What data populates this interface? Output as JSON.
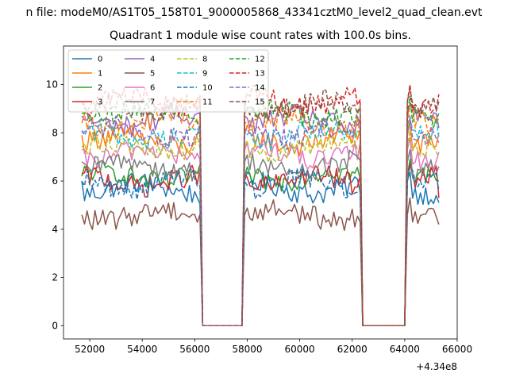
{
  "figure": {
    "suptitle": "n file: modeM0/AS1T05_158T01_9000005868_43341cztM0_level2_quad_clean.evt"
  },
  "chart_data": {
    "type": "line",
    "title": "Quadrant 1 module wise count rates with 100.0s bins.",
    "xlabel": "",
    "ylabel": "",
    "x_offset_label": "+4.34e8",
    "xlim": [
      51000,
      66000
    ],
    "ylim": [
      -0.55,
      11.6
    ],
    "xticks": [
      52000,
      54000,
      56000,
      58000,
      60000,
      62000,
      64000,
      66000
    ],
    "yticks": [
      0,
      2,
      4,
      6,
      8,
      10
    ],
    "grid": false,
    "legend_placement": "top-left",
    "legend_columns": 4,
    "segments": [
      {
        "x_start": 51700,
        "x_end": 56200,
        "step": 100
      },
      {
        "x_start": 57900,
        "x_end": 62300,
        "step": 100
      },
      {
        "x_start": 64100,
        "x_end": 65300,
        "step": 100
      }
    ],
    "gaps": [
      {
        "x_start": 56300,
        "x_end": 57800
      },
      {
        "x_start": 62400,
        "x_end": 64000
      }
    ],
    "series": [
      {
        "name": "0",
        "color": "#1f77b4",
        "dashed": false,
        "level": 5.7,
        "segment_start_level": 6.0,
        "last_level": 5.1
      },
      {
        "name": "1",
        "color": "#ff7f0e",
        "dashed": false,
        "level": 7.7,
        "segment_start_level": 7.9,
        "last_level": 8.0
      },
      {
        "name": "2",
        "color": "#2ca02c",
        "dashed": false,
        "level": 6.2,
        "segment_start_level": 6.2,
        "last_level": 6.0
      },
      {
        "name": "3",
        "color": "#d62728",
        "dashed": false,
        "level": 6.0,
        "segment_start_level": 6.3,
        "last_level": 5.3
      },
      {
        "name": "4",
        "color": "#9467bd",
        "dashed": false,
        "level": 8.5,
        "segment_start_level": 8.7,
        "last_level": 8.2
      },
      {
        "name": "5",
        "color": "#8c564b",
        "dashed": false,
        "level": 4.6,
        "segment_start_level": 4.6,
        "last_level": 4.2
      },
      {
        "name": "6",
        "color": "#e377c2",
        "dashed": false,
        "level": 7.1,
        "segment_start_level": 7.3,
        "last_level": 7.2
      },
      {
        "name": "7",
        "color": "#7f7f7f",
        "dashed": false,
        "level": 6.6,
        "segment_start_level": 6.8,
        "last_level": 6.6
      },
      {
        "name": "8",
        "color": "#bcbd22",
        "dashed": true,
        "level": 7.4,
        "segment_start_level": 7.4,
        "last_level": 7.0
      },
      {
        "name": "9",
        "color": "#17becf",
        "dashed": true,
        "level": 7.9,
        "segment_start_level": 8.0,
        "last_level": 7.8
      },
      {
        "name": "10",
        "color": "#1f77b4",
        "dashed": true,
        "level": 5.9,
        "segment_start_level": 6.0,
        "last_level": 5.6
      },
      {
        "name": "11",
        "color": "#ff7f0e",
        "dashed": true,
        "level": 8.4,
        "segment_start_level": 8.4,
        "last_level": 8.6
      },
      {
        "name": "12",
        "color": "#2ca02c",
        "dashed": true,
        "level": 8.8,
        "segment_start_level": 8.8,
        "last_level": 8.8
      },
      {
        "name": "13",
        "color": "#d62728",
        "dashed": true,
        "level": 9.3,
        "segment_start_level": 9.3,
        "last_level": 9.6
      },
      {
        "name": "14",
        "color": "#9467bd",
        "dashed": true,
        "level": 8.0,
        "segment_start_level": 8.1,
        "last_level": 7.6
      },
      {
        "name": "15",
        "color": "#8c564b",
        "dashed": true,
        "level": 9.1,
        "segment_start_level": 9.3,
        "last_level": 9.3
      }
    ]
  }
}
